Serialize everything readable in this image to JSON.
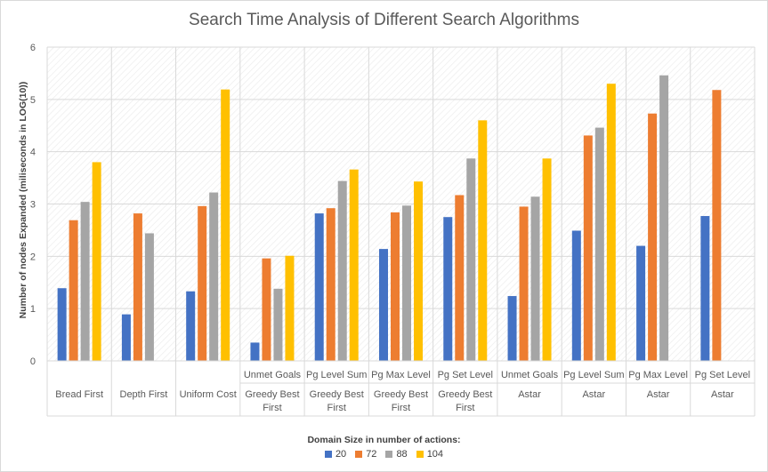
{
  "chart_data": {
    "type": "bar",
    "title": "Search Time Analysis of Different Search Algorithms",
    "ylabel": "Number of nodes Expanded  (miliseconds in LOG(10))",
    "legend_title": "Domain Size in number of actions:",
    "ylim": [
      0,
      6
    ],
    "yticks": [
      "0",
      "1",
      "2",
      "3",
      "4",
      "5",
      "6"
    ],
    "grid": true,
    "legend_position": "bottom",
    "categories": [
      {
        "top": "",
        "bottom": "Bread First"
      },
      {
        "top": "",
        "bottom": "Depth First"
      },
      {
        "top": "",
        "bottom": "Uniform Cost"
      },
      {
        "top": "Unmet Goals",
        "bottom": "Greedy Best First"
      },
      {
        "top": "Pg Level Sum",
        "bottom": "Greedy Best First"
      },
      {
        "top": "Pg Max Level",
        "bottom": "Greedy Best First"
      },
      {
        "top": "Pg Set Level",
        "bottom": "Greedy Best First"
      },
      {
        "top": "Unmet Goals",
        "bottom": "Astar"
      },
      {
        "top": "Pg Level Sum",
        "bottom": "Astar"
      },
      {
        "top": "Pg Max Level",
        "bottom": "Astar"
      },
      {
        "top": "Pg Set Level",
        "bottom": "Astar"
      }
    ],
    "series": [
      {
        "name": "20",
        "color": "#4472c4",
        "values": [
          1.39,
          0.89,
          1.33,
          0.35,
          2.82,
          2.14,
          2.75,
          1.24,
          2.49,
          2.2,
          2.77
        ]
      },
      {
        "name": "72",
        "color": "#ed7d31",
        "values": [
          2.69,
          2.82,
          2.96,
          1.96,
          2.92,
          2.84,
          3.17,
          2.95,
          4.31,
          4.73,
          5.18
        ]
      },
      {
        "name": "88",
        "color": "#a5a5a5",
        "values": [
          3.04,
          2.44,
          3.22,
          1.38,
          3.44,
          2.97,
          3.87,
          3.14,
          4.46,
          5.46,
          null
        ]
      },
      {
        "name": "104",
        "color": "#ffc000",
        "values": [
          3.8,
          null,
          5.19,
          2.01,
          3.66,
          3.43,
          4.6,
          3.87,
          5.3,
          null,
          null
        ]
      }
    ]
  }
}
